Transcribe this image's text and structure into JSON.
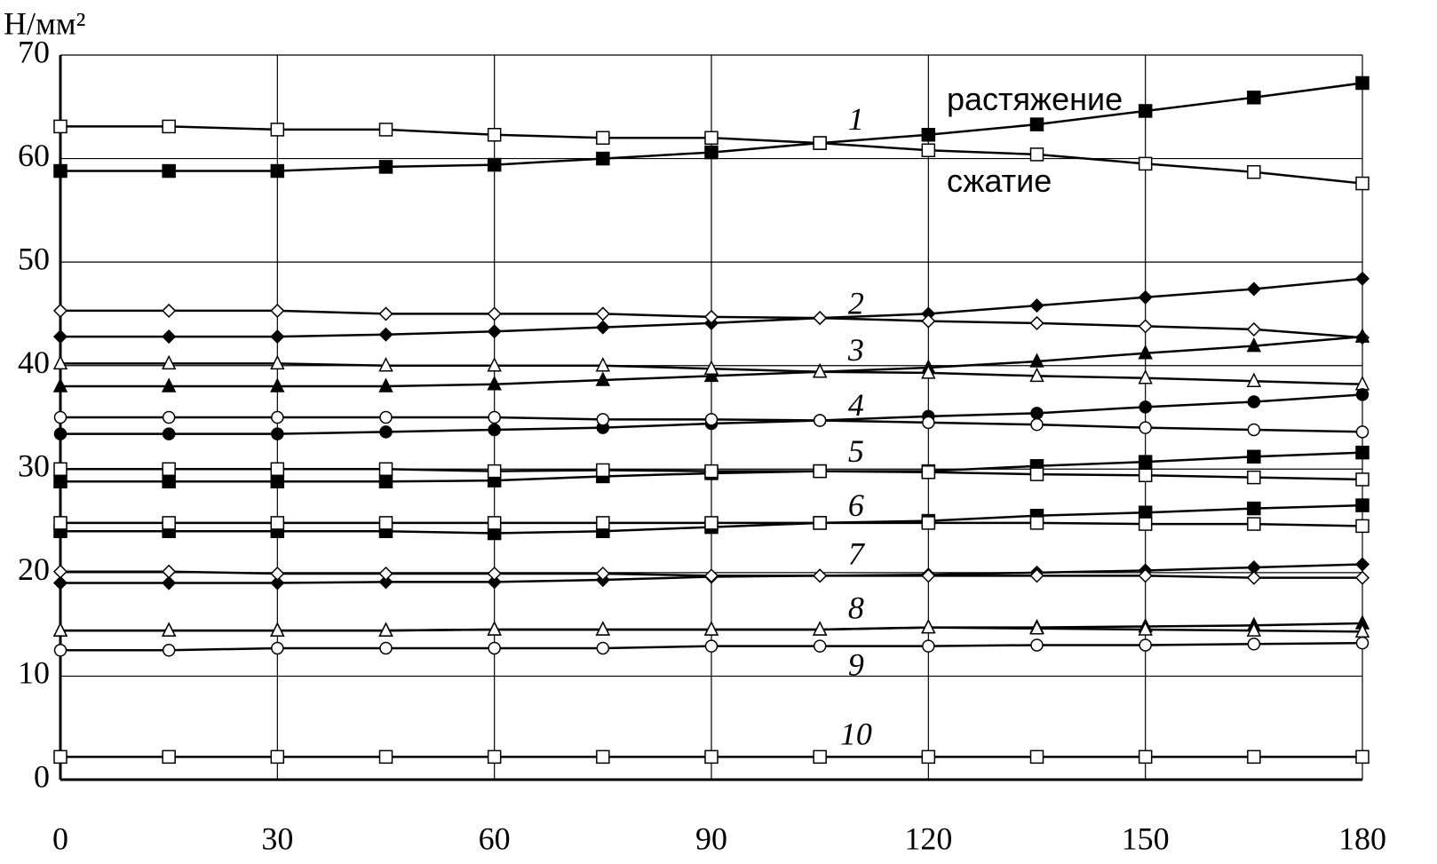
{
  "chart_data": {
    "type": "line",
    "y_label": "Н/мм²",
    "x": [
      0,
      15,
      30,
      45,
      60,
      75,
      90,
      105,
      120,
      135,
      150,
      165,
      180
    ],
    "xlim": [
      0,
      180
    ],
    "xticks": [
      0,
      30,
      60,
      90,
      120,
      150,
      180
    ],
    "ylim": [
      0,
      70
    ],
    "yticks": [
      0,
      10,
      20,
      30,
      40,
      50,
      60,
      70
    ],
    "grid": true,
    "color": "#000000",
    "series": [
      {
        "marker": "square",
        "filled": true,
        "values": [
          58.8,
          58.8,
          58.8,
          59.2,
          59.4,
          60.0,
          60.6,
          61.5,
          62.3,
          63.3,
          64.6,
          65.9,
          67.3
        ]
      },
      {
        "marker": "square",
        "filled": false,
        "values": [
          63.1,
          63.1,
          62.8,
          62.8,
          62.3,
          62.0,
          62.0,
          61.5,
          60.8,
          60.4,
          59.5,
          58.7,
          57.6
        ]
      },
      {
        "marker": "diamond",
        "filled": true,
        "values": [
          42.8,
          42.8,
          42.8,
          43.0,
          43.3,
          43.7,
          44.1,
          44.6,
          45.0,
          45.8,
          46.6,
          47.4,
          48.4
        ]
      },
      {
        "marker": "diamond",
        "filled": false,
        "values": [
          45.3,
          45.3,
          45.3,
          45.0,
          45.0,
          45.0,
          44.7,
          44.6,
          44.3,
          44.1,
          43.8,
          43.5,
          42.7
        ]
      },
      {
        "marker": "triangle",
        "filled": true,
        "values": [
          38.0,
          38.0,
          38.0,
          38.0,
          38.2,
          38.6,
          39.0,
          39.4,
          39.8,
          40.4,
          41.2,
          41.9,
          42.8
        ]
      },
      {
        "marker": "triangle",
        "filled": false,
        "values": [
          40.2,
          40.2,
          40.2,
          40.0,
          40.0,
          40.0,
          39.7,
          39.4,
          39.3,
          39.0,
          38.8,
          38.5,
          38.2
        ]
      },
      {
        "marker": "circle",
        "filled": true,
        "values": [
          33.4,
          33.4,
          33.4,
          33.6,
          33.8,
          34.0,
          34.4,
          34.7,
          35.1,
          35.4,
          36.0,
          36.5,
          37.2
        ]
      },
      {
        "marker": "circle",
        "filled": false,
        "values": [
          35.0,
          35.0,
          35.0,
          35.0,
          35.0,
          34.8,
          34.8,
          34.7,
          34.5,
          34.3,
          34.0,
          33.8,
          33.6
        ]
      },
      {
        "marker": "square",
        "filled": true,
        "values": [
          28.8,
          28.8,
          28.8,
          28.8,
          28.9,
          29.3,
          29.6,
          29.8,
          29.8,
          30.3,
          30.7,
          31.2,
          31.6
        ]
      },
      {
        "marker": "square",
        "filled": false,
        "values": [
          30.0,
          30.0,
          30.0,
          30.0,
          29.8,
          29.9,
          29.8,
          29.8,
          29.7,
          29.5,
          29.4,
          29.2,
          29.0
        ]
      },
      {
        "marker": "square",
        "filled": true,
        "values": [
          24.0,
          24.0,
          24.0,
          24.0,
          23.8,
          24.0,
          24.4,
          24.8,
          25.0,
          25.5,
          25.8,
          26.2,
          26.5
        ]
      },
      {
        "marker": "square",
        "filled": false,
        "values": [
          24.8,
          24.8,
          24.8,
          24.8,
          24.8,
          24.8,
          24.8,
          24.8,
          24.8,
          24.8,
          24.7,
          24.7,
          24.5
        ]
      },
      {
        "marker": "diamond",
        "filled": true,
        "values": [
          19.0,
          19.0,
          19.0,
          19.1,
          19.1,
          19.3,
          19.6,
          19.7,
          19.8,
          20.0,
          20.2,
          20.5,
          20.8
        ]
      },
      {
        "marker": "diamond",
        "filled": false,
        "values": [
          20.1,
          20.1,
          19.9,
          19.9,
          19.9,
          19.9,
          19.7,
          19.7,
          19.7,
          19.7,
          19.7,
          19.5,
          19.5
        ]
      },
      {
        "marker": "triangle",
        "filled": true,
        "values": [
          14.4,
          14.4,
          14.4,
          14.4,
          14.5,
          14.5,
          14.5,
          14.5,
          14.7,
          14.7,
          14.8,
          14.9,
          15.1
        ]
      },
      {
        "marker": "triangle",
        "filled": false,
        "values": [
          14.4,
          14.4,
          14.4,
          14.4,
          14.5,
          14.5,
          14.5,
          14.5,
          14.7,
          14.6,
          14.5,
          14.4,
          14.3
        ]
      },
      {
        "marker": "circle",
        "filled": false,
        "values": [
          12.5,
          12.5,
          12.7,
          12.7,
          12.7,
          12.7,
          12.9,
          12.9,
          12.9,
          13.0,
          13.0,
          13.1,
          13.2
        ]
      },
      {
        "marker": "square",
        "filled": false,
        "values": [
          2.2,
          2.2,
          2.2,
          2.2,
          2.2,
          2.2,
          2.2,
          2.2,
          2.2,
          2.2,
          2.2,
          2.2,
          2.2
        ]
      }
    ],
    "annotations": [
      {
        "text": "1",
        "x": 110,
        "y": 63.5,
        "italic": true
      },
      {
        "text": "растяжение",
        "x": 134.7,
        "y": 65.5,
        "italic": false
      },
      {
        "text": "сжатие",
        "x": 129.8,
        "y": 57.6,
        "italic": false
      },
      {
        "text": "2",
        "x": 110,
        "y": 45.7,
        "italic": true
      },
      {
        "text": "3",
        "x": 110,
        "y": 41.2,
        "italic": true
      },
      {
        "text": "4",
        "x": 110,
        "y": 35.9,
        "italic": true
      },
      {
        "text": "5",
        "x": 110,
        "y": 31.4,
        "italic": true
      },
      {
        "text": "6",
        "x": 110,
        "y": 26.2,
        "italic": true
      },
      {
        "text": "7",
        "x": 110,
        "y": 21.5,
        "italic": true
      },
      {
        "text": "8",
        "x": 110,
        "y": 16.3,
        "italic": true
      },
      {
        "text": "9",
        "x": 110,
        "y": 10.8,
        "italic": true
      },
      {
        "text": "10",
        "x": 110,
        "y": 4.1,
        "italic": true
      }
    ]
  }
}
